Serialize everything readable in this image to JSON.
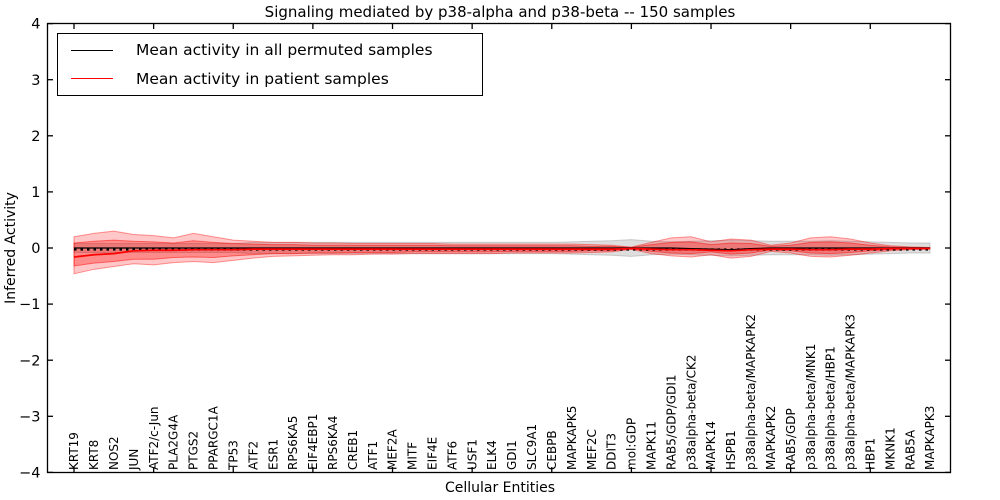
{
  "title": "Signaling mediated by p38-alpha and p38-beta -- 150 samples",
  "axes": {
    "xlabel": "Cellular Entities",
    "ylabel": "Inferred Activity"
  },
  "legend": {
    "entries": [
      {
        "label": "Mean activity in all permuted samples",
        "color": "#000000"
      },
      {
        "label": "Mean activity in patient samples",
        "color": "#ff0000"
      }
    ]
  },
  "chart_data": {
    "type": "line",
    "title": "Signaling mediated by p38-alpha and p38-beta -- 150 samples",
    "xlabel": "Cellular Entities",
    "ylabel": "Inferred Activity",
    "ylim": [
      -4,
      4
    ],
    "yticks": [
      -4,
      -3,
      -2,
      -1,
      0,
      1,
      2,
      3,
      4
    ],
    "grid": false,
    "legend_position": "upper left",
    "categories": [
      "KRT19",
      "KRT8",
      "NOS2",
      "JUN",
      "ATF2/c-Jun",
      "PLA2G4A",
      "PTGS2",
      "PPARGC1A",
      "TP53",
      "ATF2",
      "ESR1",
      "RPS6KA5",
      "EIF4EBP1",
      "RPS6KA4",
      "CREB1",
      "ATF1",
      "MEF2A",
      "MITF",
      "EIF4E",
      "ATF6",
      "USF1",
      "ELK4",
      "GDI1",
      "SLC9A1",
      "CEBPB",
      "MAPKAPK5",
      "MEF2C",
      "DDIT3",
      "mol:GDP",
      "MAPK11",
      "RAB5/GDP/GDI1",
      "p38alpha-beta/CK2",
      "MAPK14",
      "HSPB1",
      "p38alpha-beta/MAPKAPK2",
      "MAPKAPK2",
      "RAB5/GDP",
      "p38alpha-beta/MNK1",
      "p38alpha-beta/HBP1",
      "p38alpha-beta/MAPKAPK3",
      "HBP1",
      "MKNK1",
      "RAB5A",
      "MAPKAPK3"
    ],
    "series": [
      {
        "name": "Mean activity in all permuted samples",
        "color": "#000000",
        "width": 1.2,
        "values": [
          0,
          0,
          0,
          0,
          0,
          0,
          0,
          0,
          0,
          0,
          0,
          0,
          0,
          0,
          0,
          0,
          0,
          0,
          0,
          0,
          0,
          0,
          0,
          0,
          0,
          0,
          0,
          0,
          0,
          0,
          0,
          -0.01,
          -0.02,
          -0.03,
          -0.01,
          0,
          0,
          0,
          0,
          0,
          0,
          0,
          0,
          0
        ]
      },
      {
        "name": "Mean activity in patient samples",
        "color": "#ff0000",
        "width": 1.7,
        "values": [
          -0.16,
          -0.12,
          -0.1,
          -0.05,
          -0.04,
          -0.04,
          -0.03,
          -0.03,
          -0.03,
          -0.02,
          -0.02,
          -0.02,
          -0.02,
          -0.02,
          -0.02,
          -0.02,
          -0.02,
          -0.02,
          -0.02,
          -0.02,
          -0.02,
          -0.02,
          -0.02,
          -0.02,
          -0.02,
          -0.02,
          -0.02,
          -0.02,
          -0.01,
          -0.02,
          -0.03,
          -0.03,
          -0.04,
          -0.05,
          -0.03,
          -0.02,
          -0.02,
          -0.03,
          -0.03,
          -0.02,
          -0.02,
          -0.01,
          -0.01,
          -0.01
        ]
      }
    ],
    "reference_line": {
      "y": 0,
      "style": "dotted",
      "color": "#000000"
    },
    "bands": [
      {
        "name": "permuted-samples-range",
        "color": "#a8a8a8",
        "opacity": 0.38,
        "upper": [
          0.08,
          0.08,
          0.08,
          0.08,
          0.08,
          0.08,
          0.08,
          0.08,
          0.08,
          0.1,
          0.1,
          0.1,
          0.1,
          0.1,
          0.1,
          0.1,
          0.1,
          0.1,
          0.1,
          0.1,
          0.1,
          0.1,
          0.1,
          0.1,
          0.1,
          0.11,
          0.12,
          0.13,
          0.15,
          0.12,
          0.11,
          0.12,
          0.13,
          0.14,
          0.13,
          0.12,
          0.12,
          0.12,
          0.13,
          0.12,
          0.11,
          0.1,
          0.09,
          0.09
        ],
        "lower": [
          -0.08,
          -0.08,
          -0.08,
          -0.08,
          -0.08,
          -0.08,
          -0.08,
          -0.08,
          -0.08,
          -0.1,
          -0.1,
          -0.1,
          -0.1,
          -0.1,
          -0.1,
          -0.1,
          -0.1,
          -0.1,
          -0.1,
          -0.1,
          -0.1,
          -0.1,
          -0.1,
          -0.1,
          -0.1,
          -0.11,
          -0.12,
          -0.13,
          -0.15,
          -0.12,
          -0.11,
          -0.12,
          -0.13,
          -0.14,
          -0.13,
          -0.12,
          -0.12,
          -0.12,
          -0.13,
          -0.12,
          -0.11,
          -0.1,
          -0.09,
          -0.09
        ]
      },
      {
        "name": "patient-samples-outer-range",
        "color": "#ff0000",
        "opacity": 0.22,
        "upper": [
          0.2,
          0.26,
          0.3,
          0.24,
          0.22,
          0.18,
          0.26,
          0.2,
          0.14,
          0.12,
          0.1,
          0.1,
          0.09,
          0.09,
          0.08,
          0.08,
          0.08,
          0.08,
          0.08,
          0.07,
          0.07,
          0.07,
          0.07,
          0.07,
          0.07,
          0.07,
          0.06,
          0.05,
          0.015,
          0.1,
          0.18,
          0.2,
          0.11,
          0.16,
          0.14,
          0.05,
          0.09,
          0.18,
          0.2,
          0.16,
          0.09,
          0.04,
          0.02,
          0.01
        ],
        "lower": [
          -0.46,
          -0.38,
          -0.33,
          -0.28,
          -0.3,
          -0.26,
          -0.24,
          -0.26,
          -0.22,
          -0.18,
          -0.15,
          -0.14,
          -0.13,
          -0.12,
          -0.12,
          -0.11,
          -0.11,
          -0.1,
          -0.1,
          -0.1,
          -0.1,
          -0.1,
          -0.09,
          -0.09,
          -0.09,
          -0.09,
          -0.08,
          -0.07,
          -0.025,
          -0.1,
          -0.14,
          -0.16,
          -0.12,
          -0.18,
          -0.15,
          -0.06,
          -0.09,
          -0.15,
          -0.16,
          -0.13,
          -0.09,
          -0.05,
          -0.03,
          -0.02
        ]
      },
      {
        "name": "patient-samples-inner-range",
        "color": "#ff0000",
        "opacity": 0.3,
        "upper": [
          0.09,
          0.12,
          0.14,
          0.12,
          0.11,
          0.09,
          0.13,
          0.1,
          0.08,
          0.07,
          0.06,
          0.06,
          0.05,
          0.05,
          0.05,
          0.05,
          0.05,
          0.05,
          0.05,
          0.04,
          0.04,
          0.04,
          0.04,
          0.04,
          0.04,
          0.04,
          0.03,
          0.03,
          0.01,
          0.06,
          0.1,
          0.11,
          0.06,
          0.09,
          0.08,
          0.03,
          0.05,
          0.1,
          0.11,
          0.09,
          0.05,
          0.02,
          0.01,
          0.005
        ],
        "lower": [
          -0.32,
          -0.27,
          -0.24,
          -0.2,
          -0.2,
          -0.17,
          -0.16,
          -0.17,
          -0.14,
          -0.12,
          -0.1,
          -0.1,
          -0.09,
          -0.09,
          -0.08,
          -0.08,
          -0.08,
          -0.07,
          -0.07,
          -0.07,
          -0.07,
          -0.07,
          -0.06,
          -0.06,
          -0.06,
          -0.06,
          -0.05,
          -0.05,
          -0.015,
          -0.06,
          -0.09,
          -0.1,
          -0.07,
          -0.11,
          -0.09,
          -0.035,
          -0.05,
          -0.09,
          -0.1,
          -0.08,
          -0.05,
          -0.03,
          -0.015,
          -0.01
        ]
      }
    ]
  }
}
